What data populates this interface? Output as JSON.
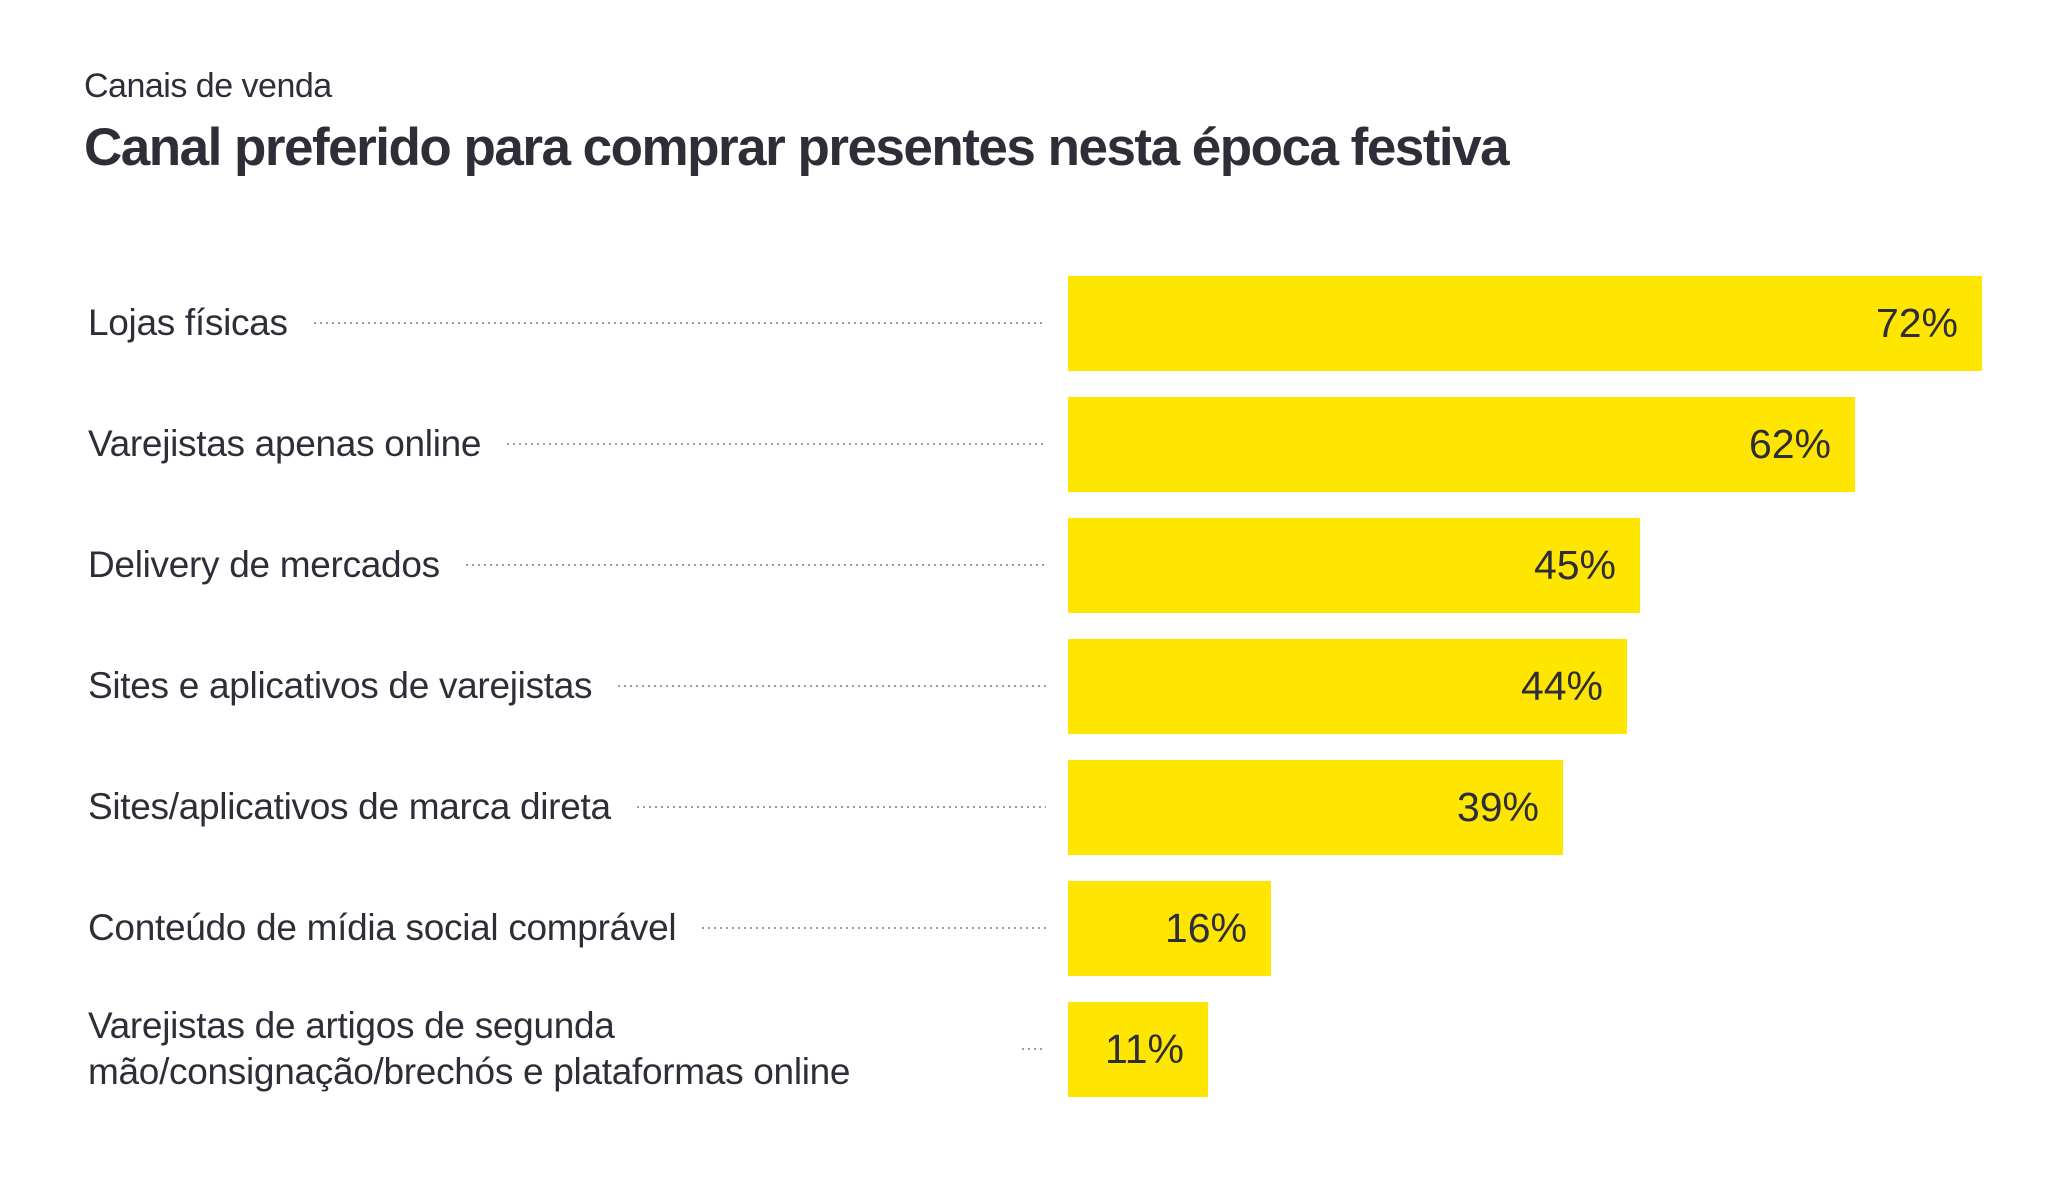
{
  "header": {
    "eyebrow": "Canais de venda",
    "title": "Canal preferido para comprar presentes nesta época festiva"
  },
  "chart_data": {
    "type": "bar",
    "orientation": "horizontal",
    "title": "Canal preferido para comprar presentes nesta época festiva",
    "subtitle_eyebrow": "Canais de venda",
    "categories": [
      "Lojas físicas",
      "Varejistas apenas online",
      "Delivery de mercados",
      "Sites e aplicativos de varejistas",
      "Sites/aplicativos de marca direta",
      "Conteúdo de mídia social comprável",
      "Varejistas de artigos de segunda mão/consignação/brechós e plataformas online"
    ],
    "values": [
      72,
      62,
      45,
      44,
      39,
      16,
      11
    ],
    "value_labels": [
      "72%",
      "62%",
      "45%",
      "44%",
      "39%",
      "16%",
      "11%"
    ],
    "unit": "%",
    "xlim": [
      0,
      77
    ],
    "grid": false,
    "axes_visible": false,
    "value_label_position": "inside-end",
    "leader_line_style": "dotted",
    "colors": {
      "bar": "#FFE600",
      "text": "#2E2E38",
      "leader_dots": "#9B9B9B",
      "background": "#FFFFFF"
    }
  }
}
